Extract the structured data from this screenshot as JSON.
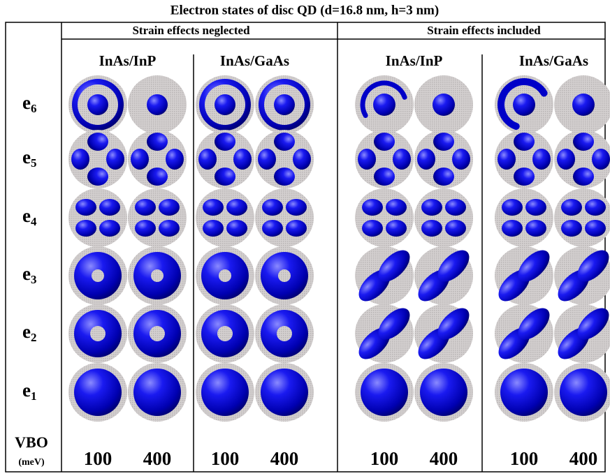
{
  "title": "Electron states of disc QD (d=16.8 nm, h=3 nm)",
  "groups": [
    {
      "label": "Strain effects neglected",
      "materials": [
        {
          "label": "InAs/InP",
          "vbo": [
            100,
            400
          ]
        },
        {
          "label": "InAs/GaAs",
          "vbo": [
            100,
            400
          ]
        }
      ]
    },
    {
      "label": "Strain effects included",
      "materials": [
        {
          "label": "InAs/InP",
          "vbo": [
            100,
            400
          ]
        },
        {
          "label": "InAs/GaAs",
          "vbo": [
            100,
            400
          ]
        }
      ]
    }
  ],
  "rows": [
    {
      "label": "e",
      "subscript": "6"
    },
    {
      "label": "e",
      "subscript": "5"
    },
    {
      "label": "e",
      "subscript": "4"
    },
    {
      "label": "e",
      "subscript": "3"
    },
    {
      "label": "e",
      "subscript": "2"
    },
    {
      "label": "e",
      "subscript": "1"
    }
  ],
  "vbo_label": "VBO",
  "vbo_unit": "(meV)"
}
